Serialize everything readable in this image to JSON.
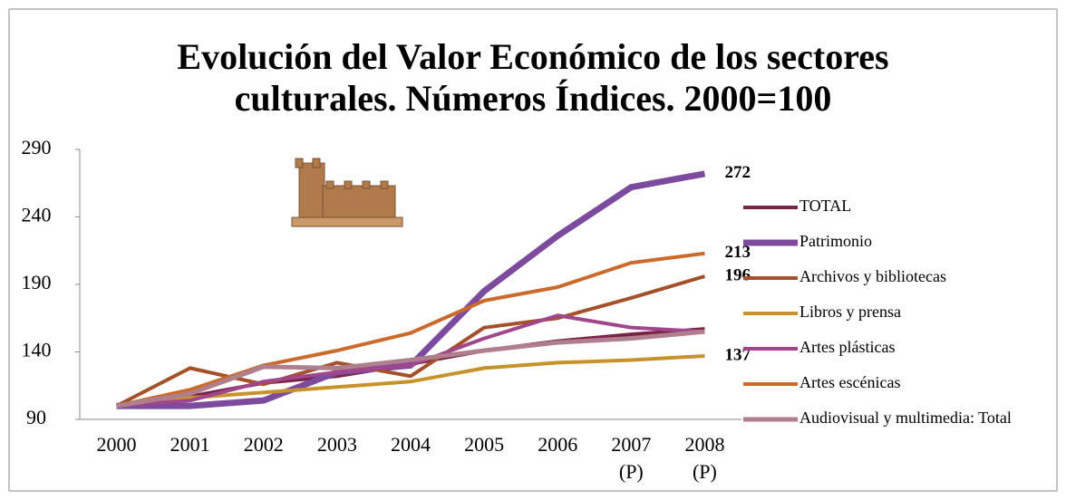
{
  "chart_data": {
    "type": "line",
    "title": "Evolución del Valor Económico de los sectores culturales. Números Índices. 2000=100",
    "categories": [
      "2000",
      "2001",
      "2002",
      "2003",
      "2004",
      "2005",
      "2006",
      "2007 (P)",
      "2008 (P)"
    ],
    "ylim": [
      90,
      290
    ],
    "yticks": [
      90,
      140,
      190,
      240,
      290
    ],
    "series": [
      {
        "name": "TOTAL",
        "color": "#7b2346",
        "width": 4,
        "values": [
          100,
          107,
          117,
          122,
          131,
          141,
          148,
          153,
          157
        ]
      },
      {
        "name": "Patrimonio",
        "color": "#7d4b9e",
        "width": 7,
        "values": [
          100,
          100,
          104,
          125,
          130,
          185,
          226,
          262,
          272
        ],
        "show_last_value": true
      },
      {
        "name": "Archivos y bibliotecas",
        "color": "#a4502a",
        "width": 4,
        "values": [
          100,
          128,
          116,
          132,
          122,
          158,
          165,
          180,
          196
        ],
        "show_last_value": true
      },
      {
        "name": "Libros y prensa",
        "color": "#c8922a",
        "width": 4,
        "values": [
          100,
          106,
          110,
          114,
          118,
          128,
          132,
          134,
          137
        ],
        "show_last_value": true
      },
      {
        "name": "Artes plásticas",
        "color": "#a0468c",
        "width": 4,
        "values": [
          100,
          104,
          118,
          125,
          130,
          150,
          167,
          158,
          155
        ]
      },
      {
        "name": "Artes escénicas",
        "color": "#cc6a2c",
        "width": 4,
        "values": [
          100,
          112,
          130,
          141,
          154,
          178,
          188,
          206,
          213
        ],
        "show_last_value": true
      },
      {
        "name": "Audiovisual y multimedia: Total",
        "color": "#b07f8e",
        "width": 5,
        "values": [
          100,
          109,
          129,
          128,
          134,
          141,
          147,
          150,
          155
        ]
      }
    ]
  }
}
